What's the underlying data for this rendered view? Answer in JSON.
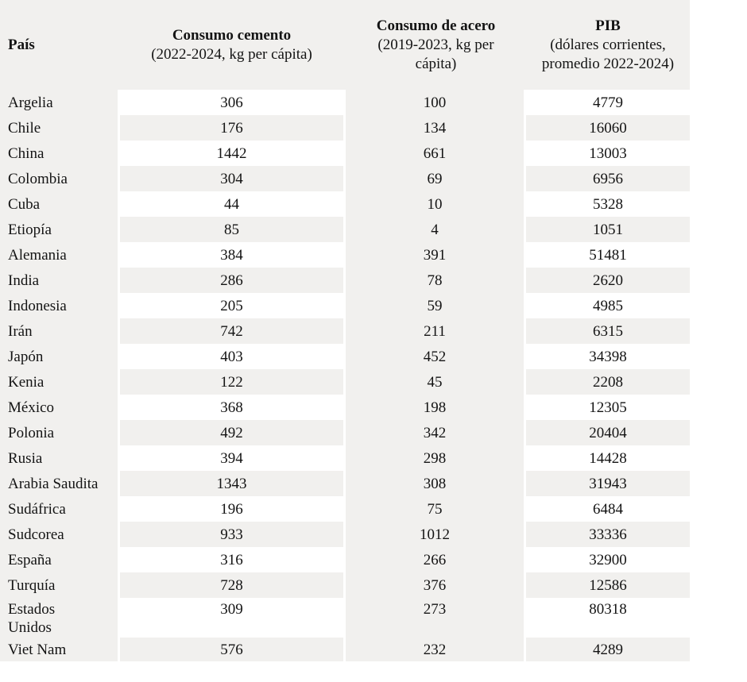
{
  "colors": {
    "table_bg": "#f1f0ee",
    "cell_highlight": "#ffffff",
    "text": "#141414"
  },
  "table": {
    "columns": [
      {
        "title": "País",
        "subtitle_lines": []
      },
      {
        "title": "Consumo cemento",
        "subtitle_lines": [
          "(2022-2024, kg per cápita)"
        ]
      },
      {
        "title": "Consumo de acero",
        "subtitle_lines": [
          "(2019-2023, kg per",
          "cápita)"
        ]
      },
      {
        "title": "PIB",
        "subtitle_lines": [
          "(dólares corrientes,",
          "promedio 2022-2024)"
        ]
      }
    ],
    "rows": [
      {
        "country": "Argelia",
        "cement": "306",
        "steel": "100",
        "pib": "4779"
      },
      {
        "country": "Chile",
        "cement": "176",
        "steel": "134",
        "pib": "16060"
      },
      {
        "country": "China",
        "cement": "1442",
        "steel": "661",
        "pib": "13003"
      },
      {
        "country": "Colombia",
        "cement": "304",
        "steel": "69",
        "pib": "6956"
      },
      {
        "country": "Cuba",
        "cement": "44",
        "steel": "10",
        "pib": "5328"
      },
      {
        "country": "Etiopía",
        "cement": "85",
        "steel": "4",
        "pib": "1051"
      },
      {
        "country": "Alemania",
        "cement": "384",
        "steel": "391",
        "pib": "51481"
      },
      {
        "country": "India",
        "cement": "286",
        "steel": "78",
        "pib": "2620"
      },
      {
        "country": "Indonesia",
        "cement": "205",
        "steel": "59",
        "pib": "4985"
      },
      {
        "country": "Irán",
        "cement": "742",
        "steel": "211",
        "pib": "6315"
      },
      {
        "country": "Japón",
        "cement": "403",
        "steel": "452",
        "pib": "34398"
      },
      {
        "country": "Kenia",
        "cement": "122",
        "steel": "45",
        "pib": "2208"
      },
      {
        "country": "México",
        "cement": "368",
        "steel": "198",
        "pib": "12305"
      },
      {
        "country": "Polonia",
        "cement": "492",
        "steel": "342",
        "pib": "20404"
      },
      {
        "country": "Rusia",
        "cement": "394",
        "steel": "298",
        "pib": "14428"
      },
      {
        "country": "Arabia Saudita",
        "cement": "1343",
        "steel": "308",
        "pib": "31943"
      },
      {
        "country": "Sudáfrica",
        "cement": "196",
        "steel": "75",
        "pib": "6484"
      },
      {
        "country": "Sudcorea",
        "cement": "933",
        "steel": "1012",
        "pib": "33336"
      },
      {
        "country": "España",
        "cement": "316",
        "steel": "266",
        "pib": "32900"
      },
      {
        "country": "Turquía",
        "cement": "728",
        "steel": "376",
        "pib": "12586"
      },
      {
        "country": "Estados Unidos",
        "cement": "309",
        "steel": "273",
        "pib": "80318"
      },
      {
        "country": "Viet Nam",
        "cement": "576",
        "steel": "232",
        "pib": "4289"
      }
    ]
  },
  "chart_data": {
    "type": "table",
    "title": "",
    "columns": [
      "País",
      "Consumo cemento (2022-2024, kg per cápita)",
      "Consumo de acero (2019-2023, kg per cápita)",
      "PIB (dólares corrientes, promedio 2022-2024)"
    ],
    "rows": [
      [
        "Argelia",
        306,
        100,
        4779
      ],
      [
        "Chile",
        176,
        134,
        16060
      ],
      [
        "China",
        1442,
        661,
        13003
      ],
      [
        "Colombia",
        304,
        69,
        6956
      ],
      [
        "Cuba",
        44,
        10,
        5328
      ],
      [
        "Etiopía",
        85,
        4,
        1051
      ],
      [
        "Alemania",
        384,
        391,
        51481
      ],
      [
        "India",
        286,
        78,
        2620
      ],
      [
        "Indonesia",
        205,
        59,
        4985
      ],
      [
        "Irán",
        742,
        211,
        6315
      ],
      [
        "Japón",
        403,
        452,
        34398
      ],
      [
        "Kenia",
        122,
        45,
        2208
      ],
      [
        "México",
        368,
        198,
        12305
      ],
      [
        "Polonia",
        492,
        342,
        20404
      ],
      [
        "Rusia",
        394,
        298,
        14428
      ],
      [
        "Arabia Saudita",
        1343,
        308,
        31943
      ],
      [
        "Sudáfrica",
        196,
        75,
        6484
      ],
      [
        "Sudcorea",
        933,
        1012,
        33336
      ],
      [
        "España",
        316,
        266,
        32900
      ],
      [
        "Turquía",
        728,
        376,
        12586
      ],
      [
        "Estados Unidos",
        309,
        273,
        80318
      ],
      [
        "Viet Nam",
        576,
        232,
        4289
      ]
    ]
  }
}
